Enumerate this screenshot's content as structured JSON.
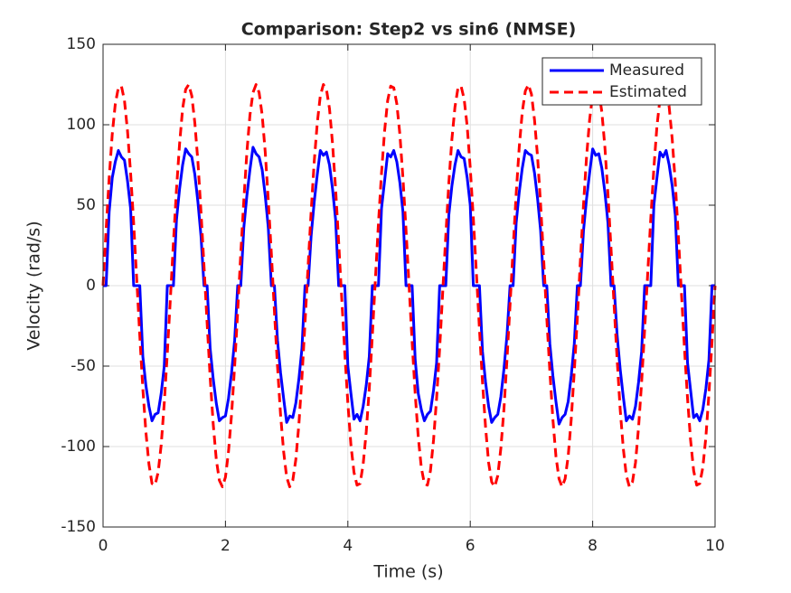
{
  "chart_data": {
    "type": "line",
    "title": "Comparison: Step2 vs sin6 (NMSE)",
    "xlabel": "Time (s)",
    "ylabel": "Velocity (rad/s)",
    "xlim": [
      0,
      10
    ],
    "ylim": [
      -150,
      150
    ],
    "xticks": [
      0,
      2,
      4,
      6,
      8,
      10
    ],
    "yticks": [
      -150,
      -100,
      -50,
      0,
      50,
      100,
      150
    ],
    "grid": true,
    "legend": "upper right",
    "x": [
      0,
      0.05,
      0.1,
      0.15,
      0.2,
      0.25,
      0.3,
      0.35,
      0.4,
      0.45,
      0.5,
      0.55,
      0.6,
      0.65,
      0.7,
      0.75,
      0.8,
      0.85,
      0.9,
      0.95,
      1,
      1.05,
      1.1,
      1.15,
      1.2,
      1.25,
      1.3,
      1.35,
      1.4,
      1.45,
      1.5,
      1.55,
      1.6,
      1.65,
      1.7,
      1.75,
      1.8,
      1.85,
      1.9,
      1.95,
      2,
      2.05,
      2.1,
      2.15,
      2.2,
      2.25,
      2.3,
      2.35,
      2.4,
      2.45,
      2.5,
      2.55,
      2.6,
      2.65,
      2.7,
      2.75,
      2.8,
      2.85,
      2.9,
      2.95,
      3,
      3.05,
      3.1,
      3.15,
      3.2,
      3.25,
      3.3,
      3.35,
      3.4,
      3.45,
      3.5,
      3.55,
      3.6,
      3.65,
      3.7,
      3.75,
      3.8,
      3.85,
      3.9,
      3.95,
      4,
      4.05,
      4.1,
      4.15,
      4.2,
      4.25,
      4.3,
      4.35,
      4.4,
      4.45,
      4.5,
      4.55,
      4.6,
      4.65,
      4.7,
      4.75,
      4.8,
      4.85,
      4.9,
      4.95,
      5,
      5.05,
      5.1,
      5.15,
      5.2,
      5.25,
      5.3,
      5.35,
      5.4,
      5.45,
      5.5,
      5.55,
      5.6,
      5.65,
      5.7,
      5.75,
      5.8,
      5.85,
      5.9,
      5.95,
      6,
      6.05,
      6.1,
      6.15,
      6.2,
      6.25,
      6.3,
      6.35,
      6.4,
      6.45,
      6.5,
      6.55,
      6.6,
      6.65,
      6.7,
      6.75,
      6.8,
      6.85,
      6.9,
      6.95,
      7,
      7.05,
      7.1,
      7.15,
      7.2,
      7.25,
      7.3,
      7.35,
      7.4,
      7.45,
      7.5,
      7.55,
      7.6,
      7.65,
      7.7,
      7.75,
      7.8,
      7.85,
      7.9,
      7.95,
      8,
      8.05,
      8.1,
      8.15,
      8.2,
      8.25,
      8.3,
      8.35,
      8.4,
      8.45,
      8.5,
      8.55,
      8.6,
      8.65,
      8.7,
      8.75,
      8.8,
      8.85,
      8.9,
      8.95,
      9,
      9.05,
      9.1,
      9.15,
      9.2,
      9.25,
      9.3,
      9.35,
      9.4,
      9.45,
      9.5,
      9.55,
      9.6,
      9.65,
      9.7,
      9.75,
      9.8,
      9.85,
      9.9,
      9.95,
      10
    ],
    "series": [
      {
        "name": "Measured",
        "color": "#0000ff",
        "style": "solid",
        "values": [
          0,
          0,
          46,
          67,
          77,
          84,
          80,
          78,
          65,
          48,
          0,
          0,
          0,
          -44,
          -62,
          -75,
          -84,
          -80,
          -79,
          -67,
          -50,
          0,
          0,
          0,
          41,
          60,
          75,
          85,
          82,
          80,
          69,
          52,
          31,
          0,
          0,
          -39,
          -58,
          -73,
          -84,
          -82,
          -81,
          -70,
          -54,
          -34,
          0,
          0,
          36,
          56,
          72,
          86,
          82,
          80,
          72,
          56,
          36,
          0,
          0,
          -34,
          -54,
          -70,
          -85,
          -81,
          -82,
          -73,
          -58,
          -39,
          0,
          0,
          31,
          52,
          69,
          84,
          81,
          83,
          75,
          60,
          41,
          0,
          0,
          0,
          -50,
          -67,
          -83,
          -80,
          -84,
          -75,
          -62,
          -44,
          0,
          0,
          0,
          48,
          65,
          82,
          80,
          84,
          77,
          64,
          46,
          0,
          0,
          0,
          -46,
          -67,
          -77,
          -84,
          -80,
          -78,
          -65,
          -48,
          0,
          0,
          0,
          44,
          62,
          75,
          84,
          80,
          79,
          67,
          50,
          0,
          0,
          0,
          -41,
          -60,
          -75,
          -85,
          -82,
          -80,
          -69,
          -52,
          -31,
          0,
          0,
          39,
          58,
          73,
          84,
          82,
          81,
          70,
          54,
          34,
          0,
          0,
          -36,
          -56,
          -72,
          -86,
          -82,
          -80,
          -72,
          -56,
          -36,
          0,
          0,
          34,
          54,
          70,
          85,
          81,
          82,
          73,
          58,
          39,
          0,
          0,
          -31,
          -52,
          -69,
          -84,
          -81,
          -83,
          -75,
          -60,
          -41,
          0,
          0,
          0,
          50,
          67,
          83,
          80,
          84,
          75,
          62,
          44,
          0,
          0,
          0,
          -48,
          -65,
          -82,
          -80,
          -84,
          -77,
          -64,
          -46,
          0,
          0
        ]
      },
      {
        "name": "Estimated",
        "color": "#ff0000",
        "style": "dashed",
        "values": [
          0,
          35,
          67,
          94,
          113,
          123,
          124,
          115,
          96,
          70,
          39,
          4,
          -31,
          -64,
          -91,
          -111,
          -123,
          -124,
          -116,
          -99,
          -73,
          -42,
          -8,
          27,
          60,
          88,
          110,
          122,
          125,
          118,
          101,
          77,
          46,
          12,
          -23,
          -57,
          -86,
          -108,
          -121,
          -125,
          -119,
          -103,
          -80,
          -50,
          -16,
          20,
          53,
          83,
          106,
          120,
          125,
          120,
          106,
          83,
          53,
          20,
          -16,
          -50,
          -80,
          -103,
          -119,
          -125,
          -121,
          -108,
          -86,
          -57,
          -23,
          12,
          46,
          77,
          101,
          118,
          125,
          122,
          110,
          88,
          60,
          27,
          -8,
          -42,
          -73,
          -99,
          -116,
          -124,
          -123,
          -111,
          -91,
          -64,
          -31,
          4,
          39,
          70,
          96,
          115,
          124,
          123,
          113,
          94,
          67,
          35,
          0,
          -35,
          -67,
          -94,
          -113,
          -123,
          -124,
          -115,
          -96,
          -70,
          -39,
          -4,
          31,
          64,
          91,
          111,
          123,
          124,
          116,
          99,
          73,
          42,
          8,
          -27,
          -60,
          -88,
          -110,
          -122,
          -125,
          -118,
          -101,
          -77,
          -46,
          -12,
          23,
          57,
          86,
          108,
          121,
          125,
          119,
          103,
          80,
          50,
          16,
          -20,
          -53,
          -83,
          -106,
          -120,
          -125,
          -120,
          -106,
          -83,
          -53,
          -20,
          16,
          50,
          80,
          103,
          119,
          125,
          121,
          108,
          86,
          57,
          23,
          -12,
          -46,
          -77,
          -101,
          -118,
          -125,
          -122,
          -110,
          -88,
          -60,
          -27,
          8,
          42,
          73,
          99,
          116,
          124,
          123,
          111,
          91,
          64,
          31,
          -4,
          -39,
          -70,
          -96,
          -115,
          -124,
          -123,
          -113,
          -94,
          -67,
          -35,
          0
        ]
      }
    ]
  }
}
